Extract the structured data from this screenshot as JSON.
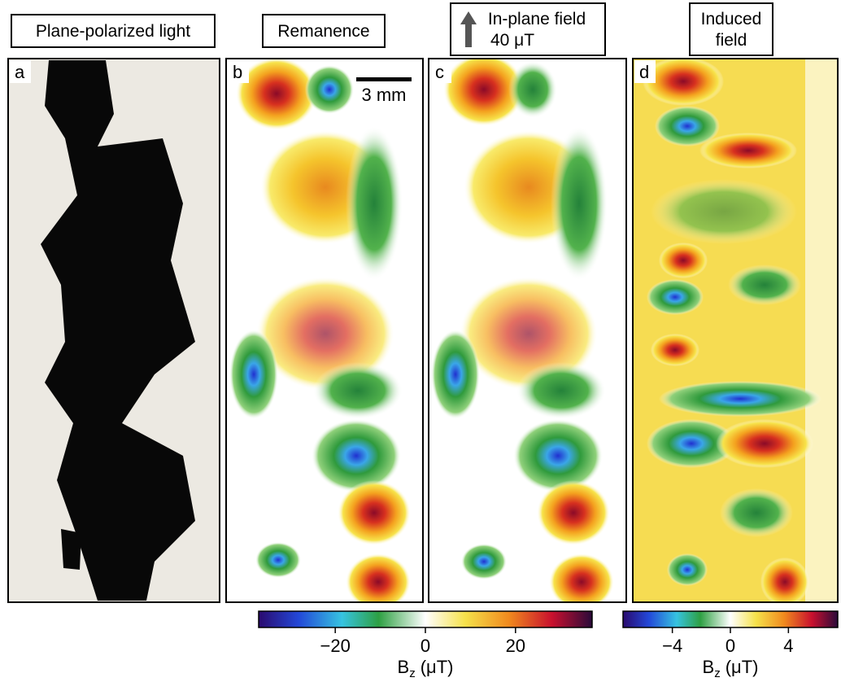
{
  "panels": [
    {
      "letter": "a",
      "header": [
        "Plane-polarized light"
      ]
    },
    {
      "letter": "b",
      "header": [
        "Remanence"
      ],
      "scalebar": "3 mm"
    },
    {
      "letter": "c",
      "header": [
        "In-plane field",
        "40 μT"
      ]
    },
    {
      "letter": "d",
      "header": [
        "Induced",
        "field"
      ]
    }
  ],
  "colorbars": [
    {
      "lim": [
        -37,
        37
      ],
      "ticks": [
        {
          "value": -20,
          "label": "−20"
        },
        0,
        20
      ],
      "label_symbol": "B",
      "label_subscript": "z",
      "label_unit": "(μT)"
    },
    {
      "lim": [
        -7.4,
        7.4
      ],
      "ticks": [
        {
          "value": -4,
          "label": "−4"
        },
        0,
        4
      ],
      "label_symbol": "B",
      "label_subscript": "z",
      "label_unit": "(μT)"
    }
  ]
}
